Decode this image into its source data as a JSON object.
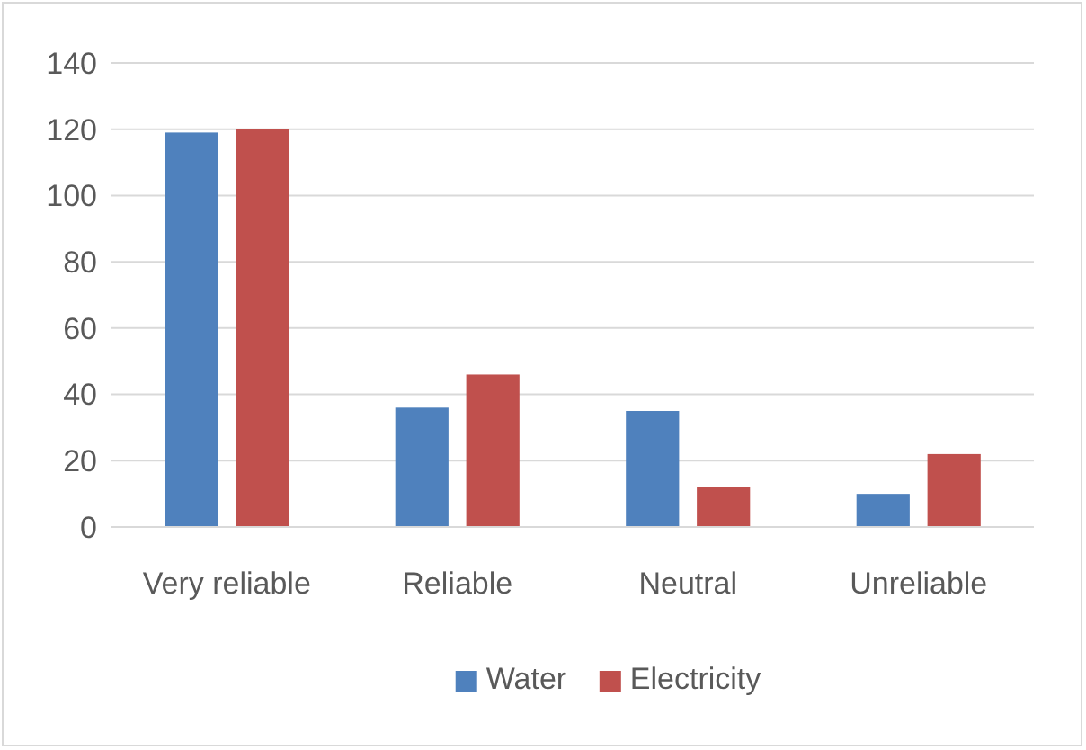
{
  "chart_data": {
    "type": "bar",
    "categories": [
      "Very reliable",
      "Reliable",
      "Neutral",
      "Unreliable"
    ],
    "series": [
      {
        "name": "Water",
        "color": "#4f81bd",
        "values": [
          119,
          36,
          35,
          10
        ]
      },
      {
        "name": "Electricity",
        "color": "#c0504d",
        "values": [
          120,
          46,
          12,
          22
        ]
      }
    ],
    "ylim": [
      0,
      140
    ],
    "yticks": [
      0,
      20,
      40,
      60,
      80,
      100,
      120,
      140
    ],
    "grid": "y",
    "legend": "bottom"
  }
}
